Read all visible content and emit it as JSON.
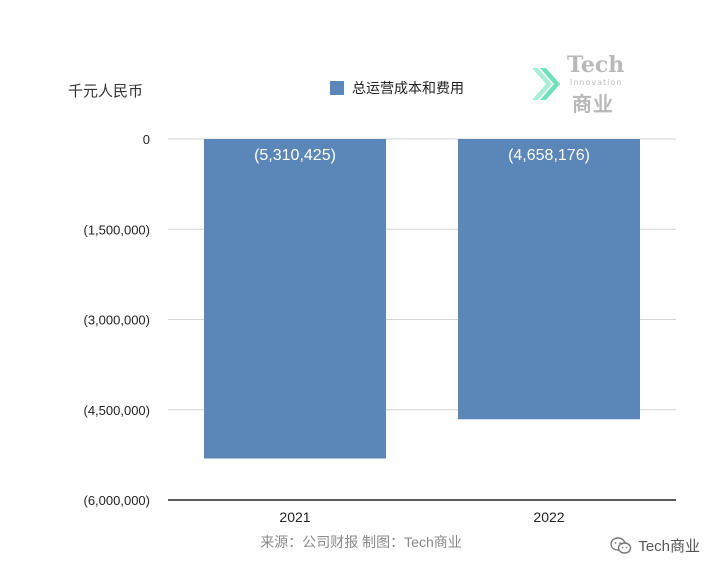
{
  "chart_data": {
    "type": "bar",
    "unit_label": "千元人民币",
    "legend": [
      {
        "name": "总运营成本和费用",
        "color": "#5b86b8"
      }
    ],
    "categories": [
      "2021",
      "2022"
    ],
    "values": [
      -5310425,
      -4658176
    ],
    "value_labels": [
      "(5,310,425)",
      "(4,658,176)"
    ],
    "ylim": [
      -6000000,
      0
    ],
    "yticks": [
      0,
      -1500000,
      -3000000,
      -4500000,
      -6000000
    ],
    "ytick_labels": [
      "0",
      "(1,500,000)",
      "(3,000,000)",
      "(4,500,000)",
      "(6,000,000)"
    ],
    "bar_color": "#5b86b8",
    "grid": true
  },
  "logo": {
    "title": "Tech",
    "subtitle": "Innovation",
    "cn": "商业",
    "accent_color": "#3fd6a3"
  },
  "source_text": "来源：公司财报 制图：Tech商业",
  "watermark": {
    "icon": "wechat-icon",
    "text": "Tech商业"
  }
}
